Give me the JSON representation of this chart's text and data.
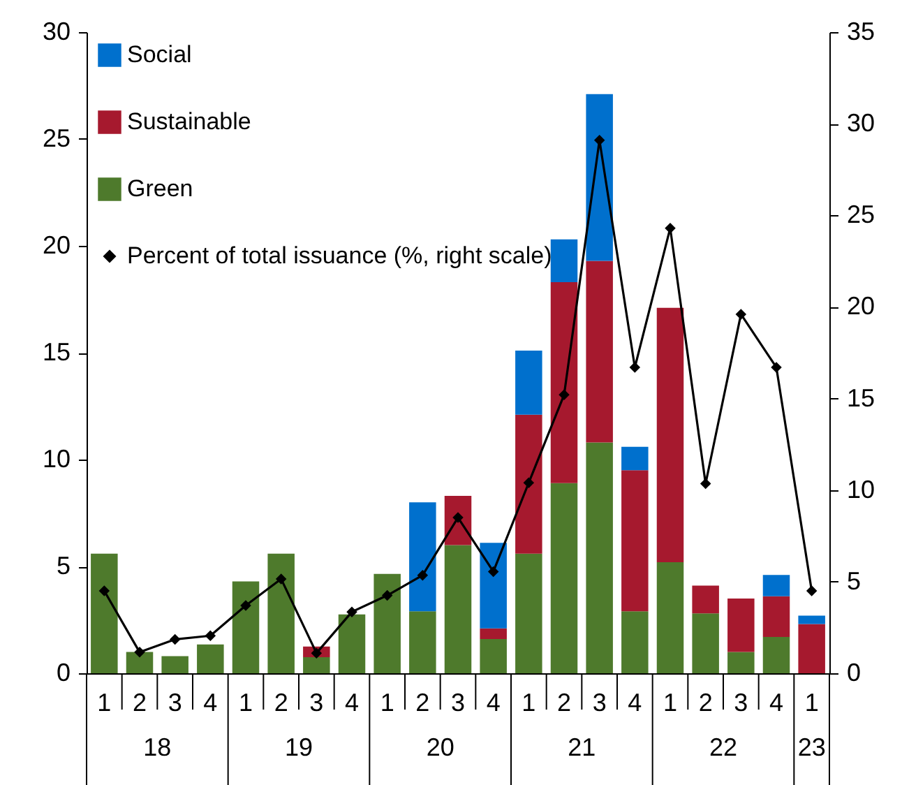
{
  "chart_data": {
    "type": "bar",
    "stacked": true,
    "legend": "top left",
    "marker": "diamond",
    "line_style": "solid",
    "categories": [
      "1",
      "2",
      "3",
      "4",
      "1",
      "2",
      "3",
      "4",
      "1",
      "2",
      "3",
      "4",
      "1",
      "2",
      "3",
      "4",
      "1",
      "2",
      "3",
      "4",
      "1"
    ],
    "annotations": [
      "18",
      "19",
      "20",
      "21",
      "22",
      "23"
    ],
    "ylim": [
      0,
      30
    ],
    "yticks": [
      0,
      5,
      10,
      15,
      20,
      25,
      30
    ],
    "y2lim": [
      0,
      35
    ],
    "y2ticks": [
      0,
      5,
      10,
      15,
      20,
      25,
      30,
      35
    ],
    "series": [
      {
        "name": "Green",
        "color": "#4e7a2c",
        "values": [
          5.6,
          1.0,
          0.8,
          1.35,
          4.3,
          5.6,
          0.75,
          2.75,
          4.65,
          2.9,
          6.0,
          1.6,
          5.6,
          8.9,
          10.8,
          2.9,
          5.2,
          2.8,
          1.0,
          1.7,
          0
        ]
      },
      {
        "name": "Sustainable",
        "color": "#a6192e",
        "values": [
          0,
          0,
          0,
          0,
          0,
          0,
          0.5,
          0,
          0,
          0,
          2.3,
          0.5,
          6.5,
          9.4,
          8.5,
          6.6,
          11.9,
          1.3,
          2.5,
          1.9,
          2.3
        ]
      },
      {
        "name": "Social",
        "color": "#0070cd",
        "values": [
          0,
          0,
          0,
          0,
          0,
          0,
          0,
          0,
          0,
          5.1,
          0,
          4.0,
          3.0,
          2.0,
          7.8,
          1.1,
          0,
          0,
          0,
          1.0,
          0.4
        ]
      },
      {
        "name": "Percent of total issuance (%, right scale)",
        "type": "line",
        "axis": "y2",
        "color": "#000000",
        "values": [
          4.5,
          1.15,
          1.85,
          2.05,
          3.7,
          5.15,
          1.1,
          3.35,
          4.25,
          5.35,
          8.5,
          5.55,
          10.4,
          15.2,
          29.1,
          16.7,
          24.3,
          10.35,
          19.6,
          16.7,
          4.5
        ]
      }
    ]
  }
}
